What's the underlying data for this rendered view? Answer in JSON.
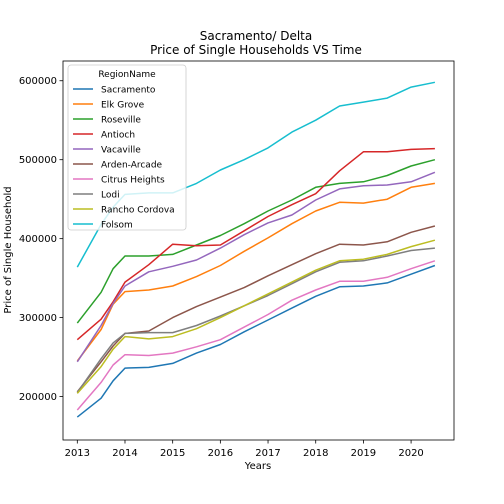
{
  "chart_data": {
    "type": "line",
    "title": "Sacramento/ Delta",
    "subtitle": "Price of Single Households VS Time",
    "xlabel": "Years",
    "ylabel": "Price of Single Household",
    "xlim": [
      2012.7,
      2020.9
    ],
    "ylim": [
      145000,
      625000
    ],
    "x_ticks": [
      2013,
      2014,
      2015,
      2016,
      2017,
      2018,
      2019,
      2020
    ],
    "y_ticks": [
      200000,
      300000,
      400000,
      500000,
      600000
    ],
    "x_tick_labels": [
      "2013",
      "2014",
      "2015",
      "2016",
      "2017",
      "2018",
      "2019",
      "2020"
    ],
    "y_tick_labels": [
      "200000",
      "300000",
      "400000",
      "500000",
      "600000"
    ],
    "grid": false,
    "legend": {
      "title": "RegionName",
      "placement": "top-left"
    },
    "series": [
      {
        "name": "Sacramento",
        "color": "#1f77b4",
        "x": [
          2013.0,
          2013.5,
          2013.75,
          2014.0,
          2014.5,
          2015.0,
          2015.5,
          2016.0,
          2016.5,
          2017.0,
          2017.5,
          2018.0,
          2018.5,
          2019.0,
          2019.5,
          2020.0,
          2020.5
        ],
        "y": [
          174000,
          198000,
          220000,
          236000,
          237000,
          242000,
          255000,
          266000,
          282000,
          297000,
          312000,
          327000,
          339000,
          340000,
          344000,
          355000,
          366000
        ]
      },
      {
        "name": "Elk Grove",
        "color": "#ff7f0e",
        "x": [
          2013.0,
          2013.5,
          2013.75,
          2014.0,
          2014.5,
          2015.0,
          2015.5,
          2016.0,
          2016.5,
          2017.0,
          2017.5,
          2018.0,
          2018.5,
          2019.0,
          2019.5,
          2020.0,
          2020.5
        ],
        "y": [
          245000,
          285000,
          317000,
          333000,
          335000,
          340000,
          352000,
          366000,
          384000,
          401000,
          419000,
          435000,
          446000,
          445000,
          450000,
          465000,
          470000
        ]
      },
      {
        "name": "Roseville",
        "color": "#2ca02c",
        "x": [
          2013.0,
          2013.5,
          2013.75,
          2014.0,
          2014.5,
          2015.0,
          2015.5,
          2016.0,
          2016.5,
          2017.0,
          2017.5,
          2018.0,
          2018.5,
          2019.0,
          2019.5,
          2020.0,
          2020.5
        ],
        "y": [
          293000,
          332000,
          362000,
          378000,
          378000,
          380000,
          392000,
          404000,
          419000,
          435000,
          449000,
          465000,
          470000,
          472000,
          480000,
          492000,
          500000
        ]
      },
      {
        "name": "Antioch",
        "color": "#d62728",
        "x": [
          2013.0,
          2013.5,
          2013.75,
          2014.0,
          2014.5,
          2015.0,
          2015.5,
          2016.0,
          2016.5,
          2017.0,
          2017.5,
          2018.0,
          2018.5,
          2019.0,
          2019.5,
          2020.0,
          2020.5
        ],
        "y": [
          272000,
          298000,
          320000,
          345000,
          367000,
          393000,
          391000,
          392000,
          410000,
          428000,
          443000,
          457000,
          486000,
          510000,
          510000,
          513000,
          514000
        ]
      },
      {
        "name": "Vacaville",
        "color": "#9467bd",
        "x": [
          2013.0,
          2013.5,
          2013.75,
          2014.0,
          2014.5,
          2015.0,
          2015.5,
          2016.0,
          2016.5,
          2017.0,
          2017.5,
          2018.0,
          2018.5,
          2019.0,
          2019.5,
          2020.0,
          2020.5
        ],
        "y": [
          244000,
          290000,
          318000,
          340000,
          358000,
          365000,
          373000,
          388000,
          405000,
          420000,
          430000,
          449000,
          463000,
          467000,
          468000,
          472000,
          484000
        ]
      },
      {
        "name": "Arden-Arcade",
        "color": "#8c564b",
        "x": [
          2013.0,
          2013.5,
          2013.75,
          2014.0,
          2014.5,
          2015.0,
          2015.5,
          2016.0,
          2016.5,
          2017.0,
          2017.5,
          2018.0,
          2018.5,
          2019.0,
          2019.5,
          2020.0,
          2020.5
        ],
        "y": [
          206000,
          244000,
          264000,
          280000,
          283000,
          300000,
          314000,
          326000,
          338000,
          353000,
          367000,
          381000,
          393000,
          392000,
          396000,
          408000,
          416000
        ]
      },
      {
        "name": "Citrus Heights",
        "color": "#e377c2",
        "x": [
          2013.0,
          2013.5,
          2013.75,
          2014.0,
          2014.5,
          2015.0,
          2015.5,
          2016.0,
          2016.5,
          2017.0,
          2017.5,
          2018.0,
          2018.5,
          2019.0,
          2019.5,
          2020.0,
          2020.5
        ],
        "y": [
          183000,
          218000,
          240000,
          253000,
          252000,
          255000,
          263000,
          272000,
          288000,
          304000,
          322000,
          335000,
          346000,
          346000,
          351000,
          362000,
          372000
        ]
      },
      {
        "name": "Lodi",
        "color": "#7f7f7f",
        "x": [
          2013.0,
          2013.5,
          2013.75,
          2014.0,
          2014.5,
          2015.0,
          2015.5,
          2016.0,
          2016.5,
          2017.0,
          2017.5,
          2018.0,
          2018.5,
          2019.0,
          2019.5,
          2020.0,
          2020.5
        ],
        "y": [
          205000,
          248000,
          268000,
          280000,
          281000,
          281000,
          290000,
          302000,
          315000,
          328000,
          343000,
          358000,
          370000,
          372000,
          378000,
          385000,
          388000
        ]
      },
      {
        "name": "Rancho Cordova",
        "color": "#bcbd22",
        "x": [
          2013.0,
          2013.5,
          2013.75,
          2014.0,
          2014.5,
          2015.0,
          2015.5,
          2016.0,
          2016.5,
          2017.0,
          2017.5,
          2018.0,
          2018.5,
          2019.0,
          2019.5,
          2020.0,
          2020.5
        ],
        "y": [
          204000,
          238000,
          260000,
          276000,
          273000,
          276000,
          286000,
          300000,
          315000,
          330000,
          345000,
          360000,
          372000,
          374000,
          380000,
          390000,
          398000
        ]
      },
      {
        "name": "Folsom",
        "color": "#17becf",
        "x": [
          2013.0,
          2013.5,
          2013.75,
          2014.0,
          2014.5,
          2015.0,
          2015.5,
          2016.0,
          2016.5,
          2017.0,
          2017.5,
          2018.0,
          2018.5,
          2019.0,
          2019.5,
          2020.0,
          2020.5
        ],
        "y": [
          364000,
          418000,
          440000,
          456000,
          458000,
          458000,
          470000,
          487000,
          500000,
          515000,
          535000,
          550000,
          568000,
          573000,
          578000,
          592000,
          598000
        ]
      }
    ]
  }
}
